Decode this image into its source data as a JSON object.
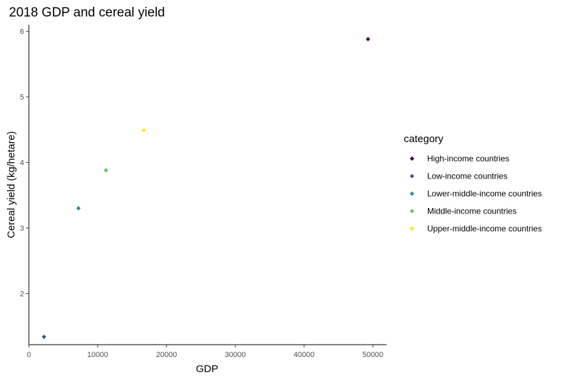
{
  "chart_data": {
    "type": "scatter",
    "title": "2018 GDP and cereal yield",
    "xlabel": "GDP",
    "ylabel": "Cereal yield (kg/hetare)",
    "xlim": [
      0,
      52000
    ],
    "ylim": [
      1.22,
      6.1
    ],
    "x_ticks": [
      0,
      10000,
      20000,
      30000,
      40000,
      50000
    ],
    "y_ticks": [
      2,
      3,
      4,
      5,
      6
    ],
    "grid": false,
    "legend": {
      "title": "category",
      "position": "right"
    },
    "series": [
      {
        "name": "High-income countries",
        "color": "#440154",
        "x": [
          49300
        ],
        "y": [
          5.88
        ]
      },
      {
        "name": "Low-income countries",
        "color": "#3B528B",
        "x": [
          2200
        ],
        "y": [
          1.34
        ]
      },
      {
        "name": "Lower-middle-income countries",
        "color": "#21908C",
        "x": [
          7200
        ],
        "y": [
          3.3
        ]
      },
      {
        "name": "Middle-income countries",
        "color": "#5DC863",
        "x": [
          11200
        ],
        "y": [
          3.88
        ]
      },
      {
        "name": "Upper-middle-income countries",
        "color": "#FDE725",
        "x": [
          16700
        ],
        "y": [
          4.49
        ]
      }
    ]
  }
}
